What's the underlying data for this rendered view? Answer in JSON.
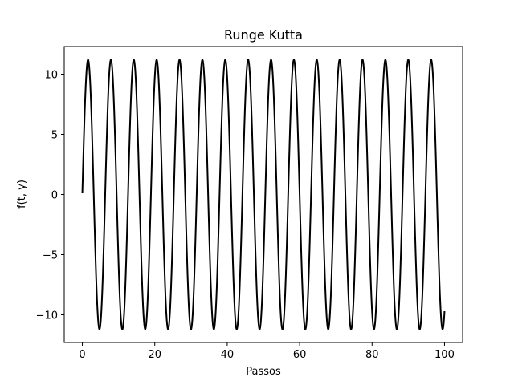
{
  "chart_data": {
    "type": "line",
    "title": "Runge Kutta",
    "xlabel": "Passos",
    "ylabel": "f(t, y)",
    "xlim": [
      -5,
      105
    ],
    "ylim": [
      -12.3,
      12.3
    ],
    "x_ticks": [
      0,
      20,
      40,
      60,
      80,
      100
    ],
    "y_ticks": [
      -10,
      -5,
      0,
      5,
      10
    ],
    "y_tick_labels": [
      "−10",
      "−5",
      "0",
      "5",
      "10"
    ],
    "grid": false,
    "legend": "none",
    "line_color": "#000000",
    "series": [
      {
        "x_start": 0,
        "x_end": 100,
        "amplitude": 11.2,
        "period": 6.28,
        "start_value": 0.1,
        "end_value": -9.7
      }
    ]
  }
}
